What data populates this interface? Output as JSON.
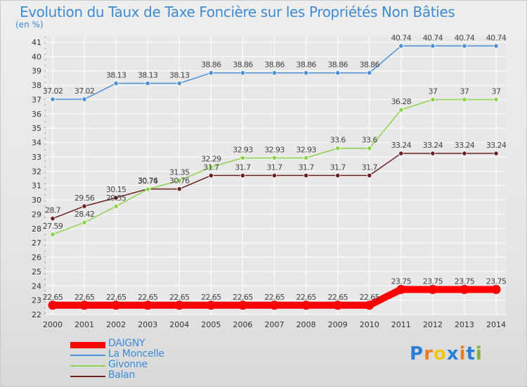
{
  "title": "Evolution du Taux de Taxe Foncière sur les Propriétés Non Bâties",
  "unit_label": "(en %)",
  "logo": {
    "p": "P",
    "r": "r",
    "o": "o",
    "x": "x",
    "i1": "i",
    "t": "t",
    "i2": "i"
  },
  "colors": {
    "background": "#e8e8e8",
    "grid": "#ffffff",
    "axis_text": "#333333",
    "logo_p": "#2a7fd4",
    "logo_r": "#e67e22",
    "logo_o": "#f1c40f",
    "logo_x": "#2a7fd4",
    "logo_i1": "#e67e22",
    "logo_t": "#2a7fd4",
    "logo_i2": "#7cb342"
  },
  "chart_data": {
    "type": "line",
    "x": [
      "2000",
      "2001",
      "2002",
      "2003",
      "2004",
      "2005",
      "2006",
      "2007",
      "2008",
      "2009",
      "2010",
      "2011",
      "2012",
      "2013",
      "2014"
    ],
    "ylim": [
      22,
      41
    ],
    "yticks": [
      22,
      23,
      24,
      25,
      26,
      27,
      28,
      29,
      30,
      31,
      32,
      33,
      34,
      35,
      36,
      37,
      38,
      39,
      40,
      41
    ],
    "grid": true,
    "legend_position": "bottom-left",
    "series": [
      {
        "name": "DAIGNY",
        "color": "#ff0000",
        "values": [
          22.65,
          22.65,
          22.65,
          22.65,
          22.65,
          22.65,
          22.65,
          22.65,
          22.65,
          22.65,
          22.65,
          23.75,
          23.75,
          23.75,
          23.75
        ],
        "labels": [
          "22.65",
          "22.65",
          "22.65",
          "22.65",
          "22.65",
          "22.65",
          "22.65",
          "22.65",
          "22.65",
          "22.65",
          "22.65",
          "23.75",
          "23.75",
          "23.75",
          "23.75"
        ]
      },
      {
        "name": "La Moncelle",
        "color": "#4a90d9",
        "values": [
          37.02,
          37.02,
          38.13,
          38.13,
          38.13,
          38.86,
          38.86,
          38.86,
          38.86,
          38.86,
          38.86,
          40.74,
          40.74,
          40.74,
          40.74
        ],
        "labels": [
          "37.02",
          "37.02",
          "38.13",
          "38.13",
          "38.13",
          "38.86",
          "38.86",
          "38.86",
          "38.86",
          "38.86",
          "38.86",
          "40.74",
          "40.74",
          "40.74",
          "40.74"
        ]
      },
      {
        "name": "Givonne",
        "color": "#8bd44a",
        "values": [
          27.59,
          28.42,
          29.55,
          30.74,
          31.35,
          32.29,
          32.93,
          32.93,
          32.93,
          33.6,
          33.6,
          36.28,
          37,
          37,
          37
        ],
        "labels": [
          "27.59",
          "28.42",
          "29.55",
          "30.74",
          "31.35",
          "32.29",
          "32.93",
          "32.93",
          "32.93",
          "33.6",
          "33.6",
          "36.28",
          "37",
          "37",
          "37"
        ]
      },
      {
        "name": "Balan",
        "color": "#6b1f1f",
        "values": [
          28.7,
          29.56,
          30.15,
          30.76,
          30.76,
          31.7,
          31.7,
          31.7,
          31.7,
          31.7,
          31.7,
          33.24,
          33.24,
          33.24,
          33.24
        ],
        "labels": [
          "28.7",
          "29.56",
          "30.15",
          "30.76",
          "30.76",
          "31.7",
          "31.7",
          "31.7",
          "31.7",
          "31.7",
          "31.7",
          "33.24",
          "33.24",
          "33.24",
          "33.24"
        ]
      }
    ]
  }
}
